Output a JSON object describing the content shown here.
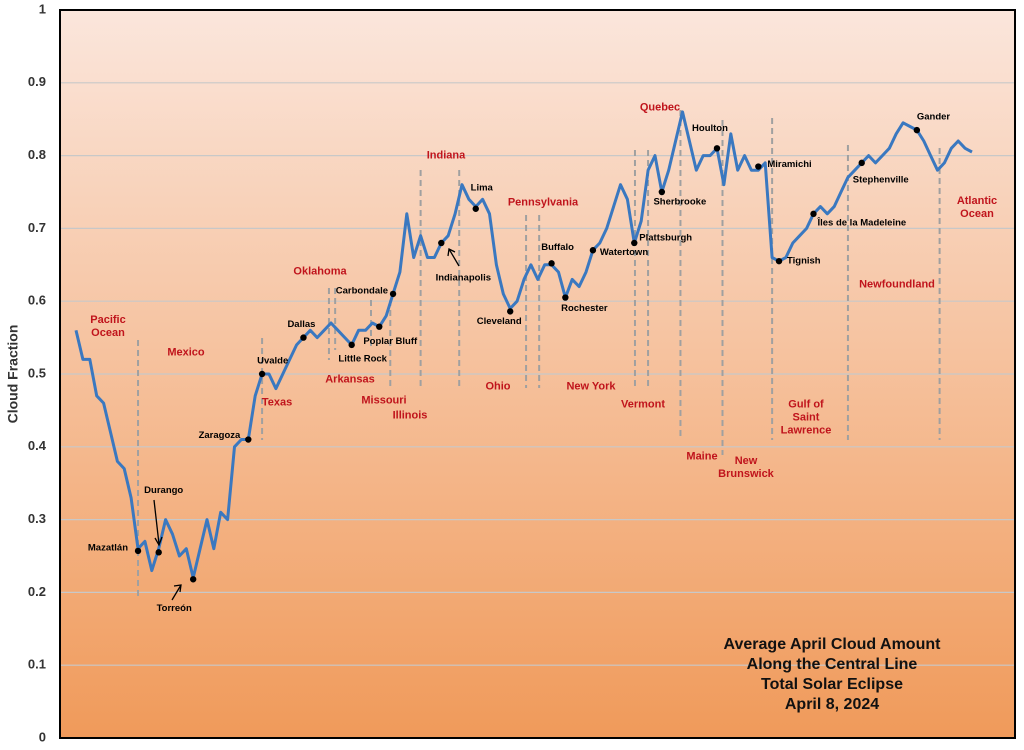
{
  "chart_data": {
    "type": "line",
    "title_lines": [
      "Average April Cloud Amount",
      "Along the Central Line",
      "Total Solar Eclipse",
      "April 8, 2024"
    ],
    "y_label": "Cloud Fraction",
    "ylim": [
      0,
      1
    ],
    "yticks": [
      0,
      0.1,
      0.2,
      0.3,
      0.4,
      0.5,
      0.6,
      0.7,
      0.8,
      0.9,
      1
    ],
    "grid": true,
    "color": "#3a78c0",
    "values": [
      0.56,
      0.52,
      0.52,
      0.47,
      0.46,
      0.42,
      0.38,
      0.37,
      0.33,
      0.26,
      0.27,
      0.23,
      0.26,
      0.3,
      0.28,
      0.25,
      0.26,
      0.22,
      0.26,
      0.3,
      0.26,
      0.31,
      0.3,
      0.4,
      0.41,
      0.41,
      0.47,
      0.5,
      0.5,
      0.48,
      0.5,
      0.52,
      0.54,
      0.55,
      0.56,
      0.55,
      0.56,
      0.57,
      0.56,
      0.55,
      0.54,
      0.56,
      0.56,
      0.57,
      0.565,
      0.58,
      0.61,
      0.64,
      0.72,
      0.66,
      0.69,
      0.66,
      0.66,
      0.68,
      0.69,
      0.72,
      0.76,
      0.74,
      0.73,
      0.74,
      0.72,
      0.65,
      0.61,
      0.59,
      0.6,
      0.63,
      0.65,
      0.63,
      0.65,
      0.65,
      0.64,
      0.605,
      0.63,
      0.62,
      0.64,
      0.67,
      0.68,
      0.7,
      0.73,
      0.76,
      0.74,
      0.68,
      0.71,
      0.78,
      0.8,
      0.75,
      0.78,
      0.82,
      0.86,
      0.82,
      0.78,
      0.8,
      0.8,
      0.81,
      0.76,
      0.83,
      0.78,
      0.8,
      0.78,
      0.78,
      0.79,
      0.66,
      0.655,
      0.66,
      0.68,
      0.69,
      0.7,
      0.72,
      0.73,
      0.72,
      0.73,
      0.75,
      0.77,
      0.78,
      0.79,
      0.8,
      0.79,
      0.8,
      0.81,
      0.83,
      0.845,
      0.84,
      0.835,
      0.82,
      0.8,
      0.78,
      0.79,
      0.81,
      0.82,
      0.81,
      0.805
    ],
    "points": [
      {
        "label": "Mazatlán",
        "x": 9,
        "value": 0.257
      },
      {
        "label": "Durango",
        "x": 12,
        "value": 0.255
      },
      {
        "label": "Torreón",
        "x": 17,
        "value": 0.218
      },
      {
        "label": "Zaragoza",
        "x": 25,
        "value": 0.41
      },
      {
        "label": "Uvalde",
        "x": 27,
        "value": 0.5
      },
      {
        "label": "Dallas",
        "x": 33,
        "value": 0.55
      },
      {
        "label": "Little Rock",
        "x": 40,
        "value": 0.54
      },
      {
        "label": "Poplar Bluff",
        "x": 44,
        "value": 0.565
      },
      {
        "label": "Carbondale",
        "x": 46,
        "value": 0.61
      },
      {
        "label": "Indianapolis",
        "x": 53,
        "value": 0.68
      },
      {
        "label": "Lima",
        "x": 58,
        "value": 0.727
      },
      {
        "label": "Cleveland",
        "x": 63,
        "value": 0.586
      },
      {
        "label": "Buffalo",
        "x": 69,
        "value": 0.652
      },
      {
        "label": "Rochester",
        "x": 71,
        "value": 0.605
      },
      {
        "label": "Watertown",
        "x": 75,
        "value": 0.67
      },
      {
        "label": "Plattsburgh",
        "x": 81,
        "value": 0.68
      },
      {
        "label": "Sherbrooke",
        "x": 85,
        "value": 0.75
      },
      {
        "label": "Houlton",
        "x": 93,
        "value": 0.81
      },
      {
        "label": "Miramichi",
        "x": 99,
        "value": 0.785
      },
      {
        "label": "Tignish",
        "x": 102,
        "value": 0.655
      },
      {
        "label": "Îles de la Madeleine",
        "x": 107,
        "value": 0.72
      },
      {
        "label": "Stephenville",
        "x": 114,
        "value": 0.79
      },
      {
        "label": "Gander",
        "x": 122,
        "value": 0.835
      }
    ],
    "regions": [
      "Pacific Ocean",
      "Mexico",
      "Texas",
      "Oklahoma",
      "Arkansas",
      "Missouri",
      "Illinois",
      "Indiana",
      "Ohio",
      "Pennsylvania",
      "New York",
      "Vermont",
      "Quebec",
      "Maine",
      "New Brunswick",
      "Gulf of Saint Lawrence",
      "Newfoundland",
      "Atlantic Ocean"
    ],
    "boundaries": [
      9,
      27,
      36.7,
      37.6,
      42.8,
      45.6,
      50,
      55.6,
      65.3,
      67.2,
      81.1,
      83,
      87.7,
      93.8,
      101,
      112,
      125.3
    ]
  }
}
